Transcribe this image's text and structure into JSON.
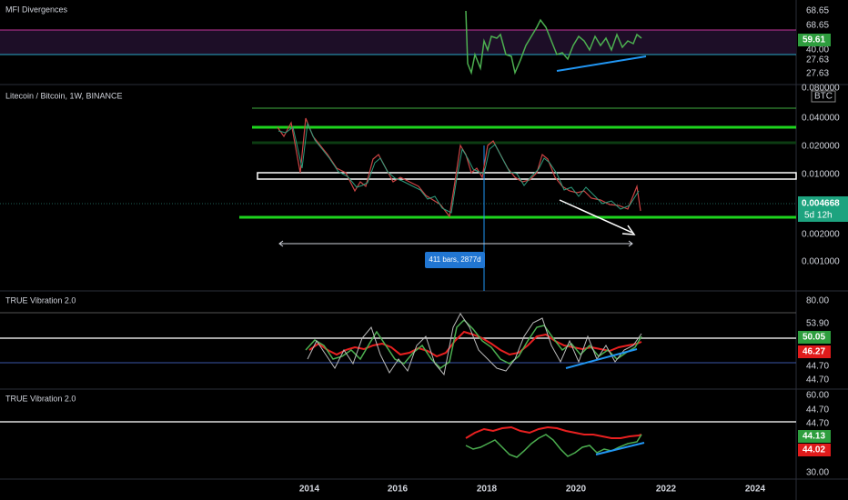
{
  "panels": [
    {
      "title": "MFI Divergences",
      "axis_labels": [
        "68.65",
        "68.65",
        "40.00",
        "27.63",
        "27.63"
      ],
      "badges": [
        "59.61"
      ]
    },
    {
      "title": "Litecoin / Bitcoin, 1W, BINANCE",
      "axis_labels": [
        "0.080000",
        "0.040000",
        "0.020000",
        "0.010000",
        "0.002000",
        "0.001000"
      ],
      "currency": "BTC",
      "badges": [
        "0.004668",
        "5d 12h"
      ],
      "annotation": "411 bars, 2877d"
    },
    {
      "title": "TRUE Vibration 2.0",
      "axis_labels": [
        "80.00",
        "53.90",
        "44.70",
        "44.70"
      ],
      "badges": [
        "50.05",
        "46.27"
      ]
    },
    {
      "title": "TRUE Vibration 2.0",
      "axis_labels": [
        "60.00",
        "44.70",
        "44.70",
        "30.00"
      ],
      "badges": [
        "44.13",
        "44.02"
      ]
    }
  ],
  "time_axis": [
    "2014",
    "2016",
    "2018",
    "2020",
    "2022",
    "2024"
  ]
}
